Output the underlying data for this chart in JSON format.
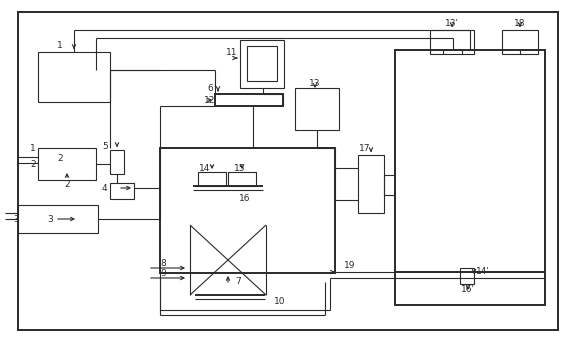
{
  "fig_width": 5.74,
  "fig_height": 3.45,
  "dpi": 100,
  "lc": "#2a2a2a",
  "lw": 0.8,
  "lw2": 1.4,
  "fs": 6.5,
  "bg": "#ffffff"
}
